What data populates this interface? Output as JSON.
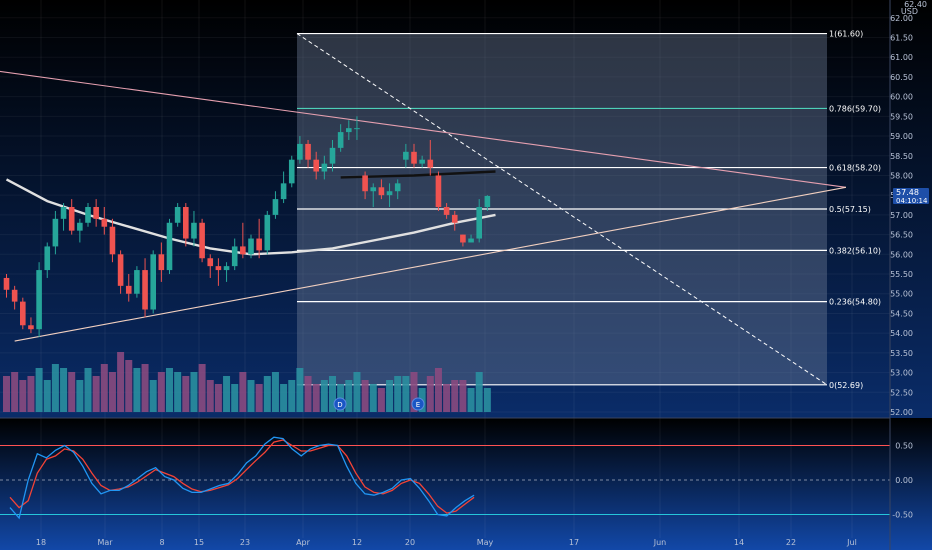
{
  "colors": {
    "background_top": "#000000",
    "background_bottom": "#0d3a8a",
    "candle_up": "#26a69a",
    "candle_down": "#ef5350",
    "volume_up": "#2a8fa0",
    "volume_down": "#8a4a80",
    "ma_white": "#e0e0e0",
    "ma_black": "#111111",
    "trend_upper": "#e6a0b0",
    "trend_lower": "#f2d0c0",
    "fib_box": "#6d7c95",
    "fib_line": "#ffffff",
    "fib_786": "#4dd0b8",
    "stoch_k": "#2196f3",
    "stoch_d": "#f44336",
    "stoch_upper": "#ff5252",
    "stoch_lower": "#26c6da",
    "price_tag": "#1e4fa8"
  },
  "header": {
    "currency": "USD",
    "price_prefix": "62.40"
  },
  "price_tag": {
    "price": "57.48",
    "countdown": "04:10:14"
  },
  "events": [
    {
      "letter": "D"
    },
    {
      "letter": "E"
    }
  ],
  "chart_data": {
    "type": "candlestick",
    "x_axis": {
      "labels": [
        "18",
        "Mar",
        "8",
        "15",
        "23",
        "Apr",
        "12",
        "20",
        "May",
        "17",
        "Jun",
        "14",
        "22",
        "Jul"
      ]
    },
    "y_axis": {
      "range": [
        52.0,
        62.4
      ],
      "labels": [
        "62.00",
        "61.50",
        "61.00",
        "60.50",
        "60.00",
        "59.50",
        "59.00",
        "58.50",
        "58.00",
        "57.50",
        "57.00",
        "56.50",
        "56.00",
        "55.50",
        "55.00",
        "54.50",
        "54.00",
        "53.50",
        "53.00",
        "52.50",
        "52.00"
      ]
    },
    "candles": [
      [
        55.4,
        55.5,
        54.9,
        55.1
      ],
      [
        55.1,
        55.2,
        54.6,
        54.8
      ],
      [
        54.8,
        54.9,
        54.1,
        54.2
      ],
      [
        54.2,
        54.4,
        54.0,
        54.1
      ],
      [
        54.1,
        55.8,
        53.9,
        55.6
      ],
      [
        55.6,
        56.3,
        55.4,
        56.2
      ],
      [
        56.2,
        57.1,
        56.0,
        56.9
      ],
      [
        56.9,
        57.3,
        56.6,
        57.2
      ],
      [
        57.2,
        57.4,
        56.5,
        56.6
      ],
      [
        56.6,
        56.9,
        56.3,
        56.8
      ],
      [
        56.8,
        57.3,
        56.7,
        57.2
      ],
      [
        57.2,
        57.4,
        56.7,
        56.9
      ],
      [
        56.9,
        57.2,
        56.5,
        56.7
      ],
      [
        56.7,
        56.9,
        55.8,
        56.0
      ],
      [
        56.0,
        56.1,
        55.0,
        55.2
      ],
      [
        55.2,
        55.5,
        54.8,
        55.0
      ],
      [
        55.0,
        55.7,
        54.9,
        55.6
      ],
      [
        55.6,
        55.9,
        54.4,
        54.6
      ],
      [
        54.6,
        56.1,
        54.5,
        56.0
      ],
      [
        56.0,
        56.3,
        55.3,
        55.6
      ],
      [
        55.6,
        56.9,
        55.5,
        56.8
      ],
      [
        56.8,
        57.3,
        56.7,
        57.2
      ],
      [
        57.2,
        57.3,
        56.2,
        56.4
      ],
      [
        56.4,
        57.1,
        56.2,
        56.8
      ],
      [
        56.8,
        56.9,
        55.8,
        55.9
      ],
      [
        55.9,
        56.0,
        55.4,
        55.7
      ],
      [
        55.7,
        55.9,
        55.2,
        55.6
      ],
      [
        55.6,
        55.8,
        55.3,
        55.7
      ],
      [
        55.7,
        56.4,
        55.6,
        56.2
      ],
      [
        56.2,
        56.8,
        55.9,
        56.0
      ],
      [
        56.0,
        56.5,
        55.9,
        56.4
      ],
      [
        56.4,
        56.9,
        55.9,
        56.1
      ],
      [
        56.1,
        57.1,
        56.0,
        57.0
      ],
      [
        57.0,
        57.6,
        56.9,
        57.4
      ],
      [
        57.4,
        58.1,
        57.3,
        57.8
      ],
      [
        57.8,
        58.5,
        57.7,
        58.4
      ],
      [
        58.4,
        59.0,
        58.3,
        58.8
      ],
      [
        58.8,
        58.9,
        58.2,
        58.4
      ],
      [
        58.4,
        58.6,
        57.9,
        58.1
      ],
      [
        58.1,
        58.5,
        57.9,
        58.3
      ],
      [
        58.3,
        58.9,
        58.1,
        58.7
      ],
      [
        58.7,
        59.3,
        58.6,
        59.1
      ],
      [
        59.1,
        59.4,
        58.9,
        59.2
      ],
      [
        59.2,
        59.5,
        58.9,
        59.2
      ],
      [
        58.0,
        58.1,
        57.4,
        57.6
      ],
      [
        57.6,
        57.8,
        57.2,
        57.7
      ],
      [
        57.7,
        57.9,
        57.4,
        57.5
      ],
      [
        57.5,
        57.8,
        57.2,
        57.6
      ],
      [
        57.6,
        57.9,
        57.4,
        57.8
      ],
      [
        58.4,
        58.8,
        58.2,
        58.6
      ],
      [
        58.6,
        58.8,
        58.2,
        58.3
      ],
      [
        58.3,
        58.5,
        58.2,
        58.4
      ],
      [
        58.4,
        58.9,
        58.0,
        58.2
      ],
      [
        58.0,
        58.1,
        57.1,
        57.2
      ],
      [
        57.2,
        57.3,
        56.9,
        57.0
      ],
      [
        57.0,
        57.1,
        56.6,
        56.8
      ],
      [
        56.5,
        56.5,
        56.2,
        56.3
      ],
      [
        56.3,
        56.5,
        56.3,
        56.4
      ],
      [
        56.4,
        57.4,
        56.3,
        57.2
      ],
      [
        57.2,
        57.5,
        57.1,
        57.48
      ]
    ],
    "volume_levels": [
      0.45,
      0.5,
      0.4,
      0.45,
      0.55,
      0.4,
      0.6,
      0.55,
      0.5,
      0.4,
      0.55,
      0.45,
      0.6,
      0.5,
      0.75,
      0.65,
      0.55,
      0.6,
      0.4,
      0.5,
      0.55,
      0.5,
      0.45,
      0.5,
      0.6,
      0.4,
      0.35,
      0.45,
      0.35,
      0.5,
      0.4,
      0.35,
      0.45,
      0.5,
      0.35,
      0.4,
      0.55,
      0.45,
      0.35,
      0.4,
      0.45,
      0.35,
      0.4,
      0.5,
      0.4,
      0.35,
      0.3,
      0.4,
      0.45,
      0.45,
      0.5,
      0.3,
      0.45,
      0.55,
      0.35,
      0.4,
      0.4,
      0.3,
      0.5,
      0.3
    ],
    "ma_white": [
      [
        0,
        57.9
      ],
      [
        5,
        57.35
      ],
      [
        10,
        57.0
      ],
      [
        15,
        56.7
      ],
      [
        20,
        56.4
      ],
      [
        25,
        56.15
      ],
      [
        30,
        56.0
      ],
      [
        35,
        56.05
      ],
      [
        40,
        56.15
      ],
      [
        45,
        56.35
      ],
      [
        50,
        56.55
      ],
      [
        55,
        56.8
      ],
      [
        60,
        57.0
      ]
    ],
    "ma_black": [
      [
        41,
        57.95
      ],
      [
        50,
        58.0
      ],
      [
        60,
        58.1
      ]
    ],
    "trendline_upper": [
      [
        -3,
        60.7
      ],
      [
        103,
        57.7
      ]
    ],
    "trendline_lower": [
      [
        1,
        53.8
      ],
      [
        103,
        57.7
      ]
    ],
    "fibonacci": {
      "levels": [
        {
          "ratio": "1",
          "price": 61.6,
          "label": "1(61.60)"
        },
        {
          "ratio": "0.786",
          "price": 59.7,
          "label": "0.786(59.70)"
        },
        {
          "ratio": "0.618",
          "price": 58.2,
          "label": "0.618(58.20)"
        },
        {
          "ratio": "0.5",
          "price": 57.15,
          "label": "0.5(57.15)"
        },
        {
          "ratio": "0.382",
          "price": 56.1,
          "label": "0.382(56.10)"
        },
        {
          "ratio": "0.236",
          "price": 54.8,
          "label": "0.236(54.80)"
        },
        {
          "ratio": "0",
          "price": 52.69,
          "label": "0(52.69)"
        }
      ]
    },
    "stochastic": {
      "y_range": [
        -0.75,
        0.75
      ],
      "labels": [
        "0.50",
        "0.00",
        "-0.50"
      ],
      "upper": 0.5,
      "lower": -0.5,
      "k": [
        -0.4,
        -0.55,
        0.0,
        0.38,
        0.32,
        0.43,
        0.5,
        0.4,
        0.2,
        -0.05,
        -0.2,
        -0.15,
        -0.15,
        -0.08,
        0.02,
        0.12,
        0.18,
        0.05,
        0.0,
        -0.12,
        -0.18,
        -0.18,
        -0.13,
        -0.08,
        -0.05,
        0.08,
        0.25,
        0.35,
        0.52,
        0.62,
        0.6,
        0.45,
        0.35,
        0.45,
        0.5,
        0.52,
        0.5,
        0.2,
        -0.05,
        -0.2,
        -0.22,
        -0.18,
        -0.12,
        0.0,
        0.02,
        -0.12,
        -0.3,
        -0.5,
        -0.52,
        -0.4,
        -0.3,
        -0.22
      ],
      "d": [
        -0.25,
        -0.4,
        -0.3,
        0.1,
        0.3,
        0.35,
        0.45,
        0.42,
        0.3,
        0.1,
        -0.08,
        -0.15,
        -0.13,
        -0.1,
        -0.03,
        0.06,
        0.15,
        0.1,
        0.05,
        -0.05,
        -0.13,
        -0.17,
        -0.15,
        -0.11,
        -0.07,
        0.02,
        0.15,
        0.28,
        0.4,
        0.55,
        0.58,
        0.5,
        0.42,
        0.42,
        0.46,
        0.5,
        0.5,
        0.35,
        0.1,
        -0.1,
        -0.18,
        -0.2,
        -0.15,
        -0.05,
        0.0,
        -0.05,
        -0.2,
        -0.38,
        -0.48,
        -0.45,
        -0.35,
        -0.25
      ]
    }
  }
}
